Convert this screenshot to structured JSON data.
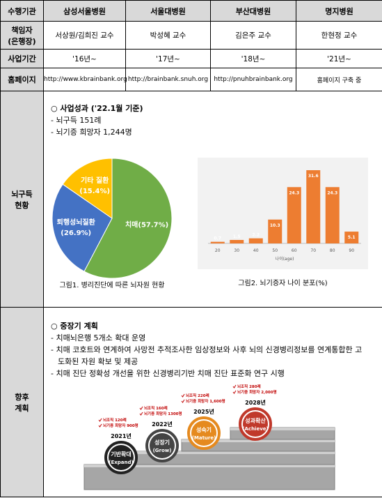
{
  "table": {
    "header": [
      "수행기관",
      "삼성서울병원",
      "서울대병원",
      "부산대병원",
      "명지병원"
    ],
    "rows": [
      [
        "책임자\n(은행장)",
        "서상원/김희진 교수",
        "박성혜 교수",
        "김은주 교수",
        "한현정 교수"
      ],
      [
        "사업기간",
        "'16년~",
        "'17년~",
        "'18년~",
        "'21년~"
      ],
      [
        "홈페이지",
        "http://www.kbrainbank.org",
        "http://brainbank.snuh.org",
        "http://pnuhbrainbank.org",
        "홈페이지 구축 중"
      ]
    ]
  },
  "status": {
    "label": "뇌구득\n현황",
    "heading": "○ 사업성과 ('22.1월 기준)",
    "items": [
      "- 뇌구득 151례",
      "- 뇌기증 희망자 1,244명"
    ]
  },
  "chart_data": [
    {
      "type": "pie",
      "categories": [
        "치매",
        "퇴행성뇌질환",
        "기타 질환"
      ],
      "values": [
        57.7,
        26.9,
        15.4
      ],
      "value_labels": [
        "(57.7%)",
        "(26.9%)",
        "(15.4%)"
      ],
      "colors": [
        "#70ad47",
        "#4472c4",
        "#ffc000"
      ],
      "caption": "그림1. 병리진단에 따른 뇌자원 현황"
    },
    {
      "type": "bar",
      "categories": [
        "20",
        "30",
        "40",
        "50",
        "60",
        "70",
        "80",
        "90"
      ],
      "values": [
        0.7,
        1.5,
        2.2,
        10.3,
        24.3,
        31.6,
        24.3,
        5.1
      ],
      "color": "#ed7d31",
      "xlabel": "나이(age)",
      "caption": "그림2. 뇌기증자 나이 분포(%)"
    }
  ],
  "plan": {
    "label": "향후\n계획",
    "heading": "○ 중장기 계획",
    "items": [
      "- 치매뇌은행 5개소 확대 운영",
      "- 치매 코호트와 연계하여 사망전 추적조사한 임상정보와 사후 뇌의 신경병리정보를 연계통합한 고도화된 자원 확보 및 제공",
      "- 치매 진단 정확성 개선을 위한 신경병리기반 치매 진단 표준화 연구 시행"
    ],
    "stages": [
      {
        "year": "2021년",
        "name": "기반확대",
        "name_en": "(Expand)",
        "notes": [
          "뇌조직 120례",
          "뇌기증 희망자 900명"
        ]
      },
      {
        "year": "2022년",
        "name": "성장기",
        "name_en": "(Grow)",
        "notes": [
          "뇌조직 160례",
          "뇌기증 희망자 1300명"
        ]
      },
      {
        "year": "2025년",
        "name": "성숙기",
        "name_en": "(Mature)",
        "notes": [
          "뇌조직 220례",
          "뇌기증 희망자 1,600명"
        ]
      },
      {
        "year": "2028년",
        "name": "성과확산",
        "name_en": "(Achieve)",
        "notes": [
          "뇌조직 280례",
          "뇌기증 희망자 2,000명"
        ]
      }
    ]
  }
}
